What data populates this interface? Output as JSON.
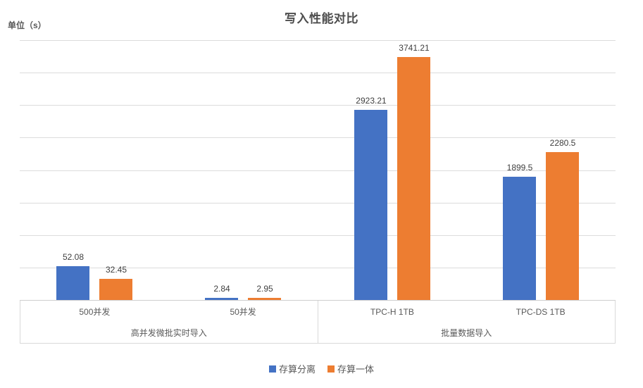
{
  "title": "写入性能对比",
  "unit_label": "单位（s）",
  "colors": {
    "series_1": "#4472C4",
    "series_2": "#ED7D31",
    "gridline": "#DCDCDC",
    "frame": "#D9D9D9",
    "text": "#595959"
  },
  "legend": [
    {
      "name": "存算分离",
      "color": "#4472C4"
    },
    {
      "name": "存算一体",
      "color": "#ED7D31"
    }
  ],
  "chart_data": {
    "type": "bar",
    "title": "写入性能对比",
    "ylabel": "单位（s）",
    "y_tick_labels_visible": false,
    "grid": true,
    "gridline_count": 9,
    "legend_position": "bottom",
    "panels": [
      {
        "group_label": "高并发微批实时导入",
        "ylim": [
          0,
          400
        ],
        "categories": [
          "500并发",
          "50并发"
        ],
        "series": [
          {
            "name": "存算分离",
            "color": "#4472C4",
            "values": [
              52.08,
              2.84
            ]
          },
          {
            "name": "存算一体",
            "color": "#ED7D31",
            "values": [
              32.45,
              2.95
            ]
          }
        ]
      },
      {
        "group_label": "批量数据导入",
        "ylim": [
          0,
          4000
        ],
        "categories": [
          "TPC-H 1TB",
          "TPC-DS 1TB"
        ],
        "series": [
          {
            "name": "存算分离",
            "color": "#4472C4",
            "values": [
              2923.21,
              1899.5
            ]
          },
          {
            "name": "存算一体",
            "color": "#ED7D31",
            "values": [
              3741.21,
              2280.5
            ]
          }
        ]
      }
    ]
  }
}
